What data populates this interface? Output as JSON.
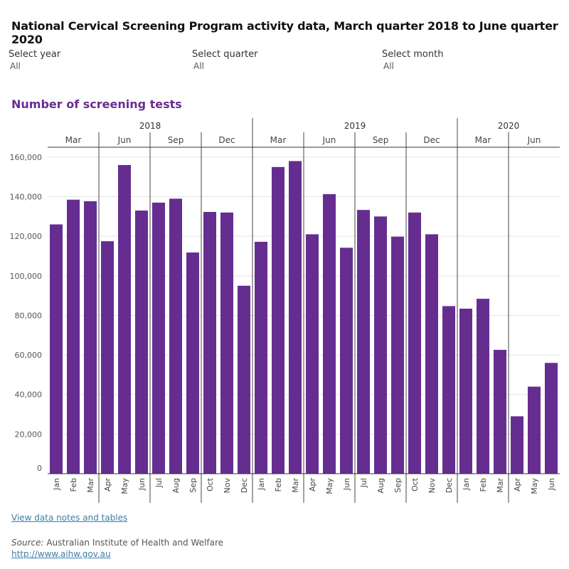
{
  "page_title": "National Cervical Screening Program activity data, March quarter 2018 to June quarter 2020",
  "filters": {
    "year": {
      "label": "Select year",
      "value": "All"
    },
    "quarter": {
      "label": "Select quarter",
      "value": "All"
    },
    "month": {
      "label": "Select month",
      "value": "All"
    }
  },
  "chart_title": "Number of screening tests",
  "footer": {
    "notes_link": "View data notes and tables",
    "source_label": "Source:",
    "source_text": " Australian Institute of Health and Welfare",
    "url": "http://www.aihw.gov.au"
  },
  "colors": {
    "bar": "#662d91",
    "title": "#6a2c91"
  },
  "chart_data": {
    "type": "bar",
    "title": "Number of screening tests",
    "xlabel": "",
    "ylabel": "",
    "ylim": [
      0,
      165000
    ],
    "yticks": [
      0,
      20000,
      40000,
      60000,
      80000,
      100000,
      120000,
      140000,
      160000
    ],
    "ytick_labels": [
      "0",
      "20,000",
      "40,000",
      "60,000",
      "80,000",
      "100,000",
      "120,000",
      "140,000",
      "160,000"
    ],
    "grid": true,
    "years": [
      {
        "label": "2018",
        "start": 0,
        "count": 12
      },
      {
        "label": "2019",
        "start": 12,
        "count": 12
      },
      {
        "label": "2020",
        "start": 24,
        "count": 6
      }
    ],
    "quarters": [
      "Mar",
      "Jun",
      "Sep",
      "Dec",
      "Mar",
      "Jun",
      "Sep",
      "Dec",
      "Mar",
      "Jun"
    ],
    "categories": [
      "Jan",
      "Feb",
      "Mar",
      "Apr",
      "May",
      "Jun",
      "Jul",
      "Aug",
      "Sep",
      "Oct",
      "Nov",
      "Dec",
      "Jan",
      "Feb",
      "Mar",
      "Apr",
      "May",
      "Jun",
      "Jul",
      "Aug",
      "Sep",
      "Oct",
      "Nov",
      "Dec",
      "Jan",
      "Feb",
      "Mar",
      "Apr",
      "May",
      "Jun"
    ],
    "values": [
      126000,
      138500,
      137700,
      117500,
      156000,
      133000,
      137000,
      139000,
      111800,
      132300,
      132000,
      95000,
      117200,
      155000,
      158000,
      121000,
      141300,
      114200,
      133300,
      130000,
      119800,
      132000,
      121000,
      84700,
      83400,
      88400,
      62600,
      29000,
      44000,
      56000
    ]
  }
}
